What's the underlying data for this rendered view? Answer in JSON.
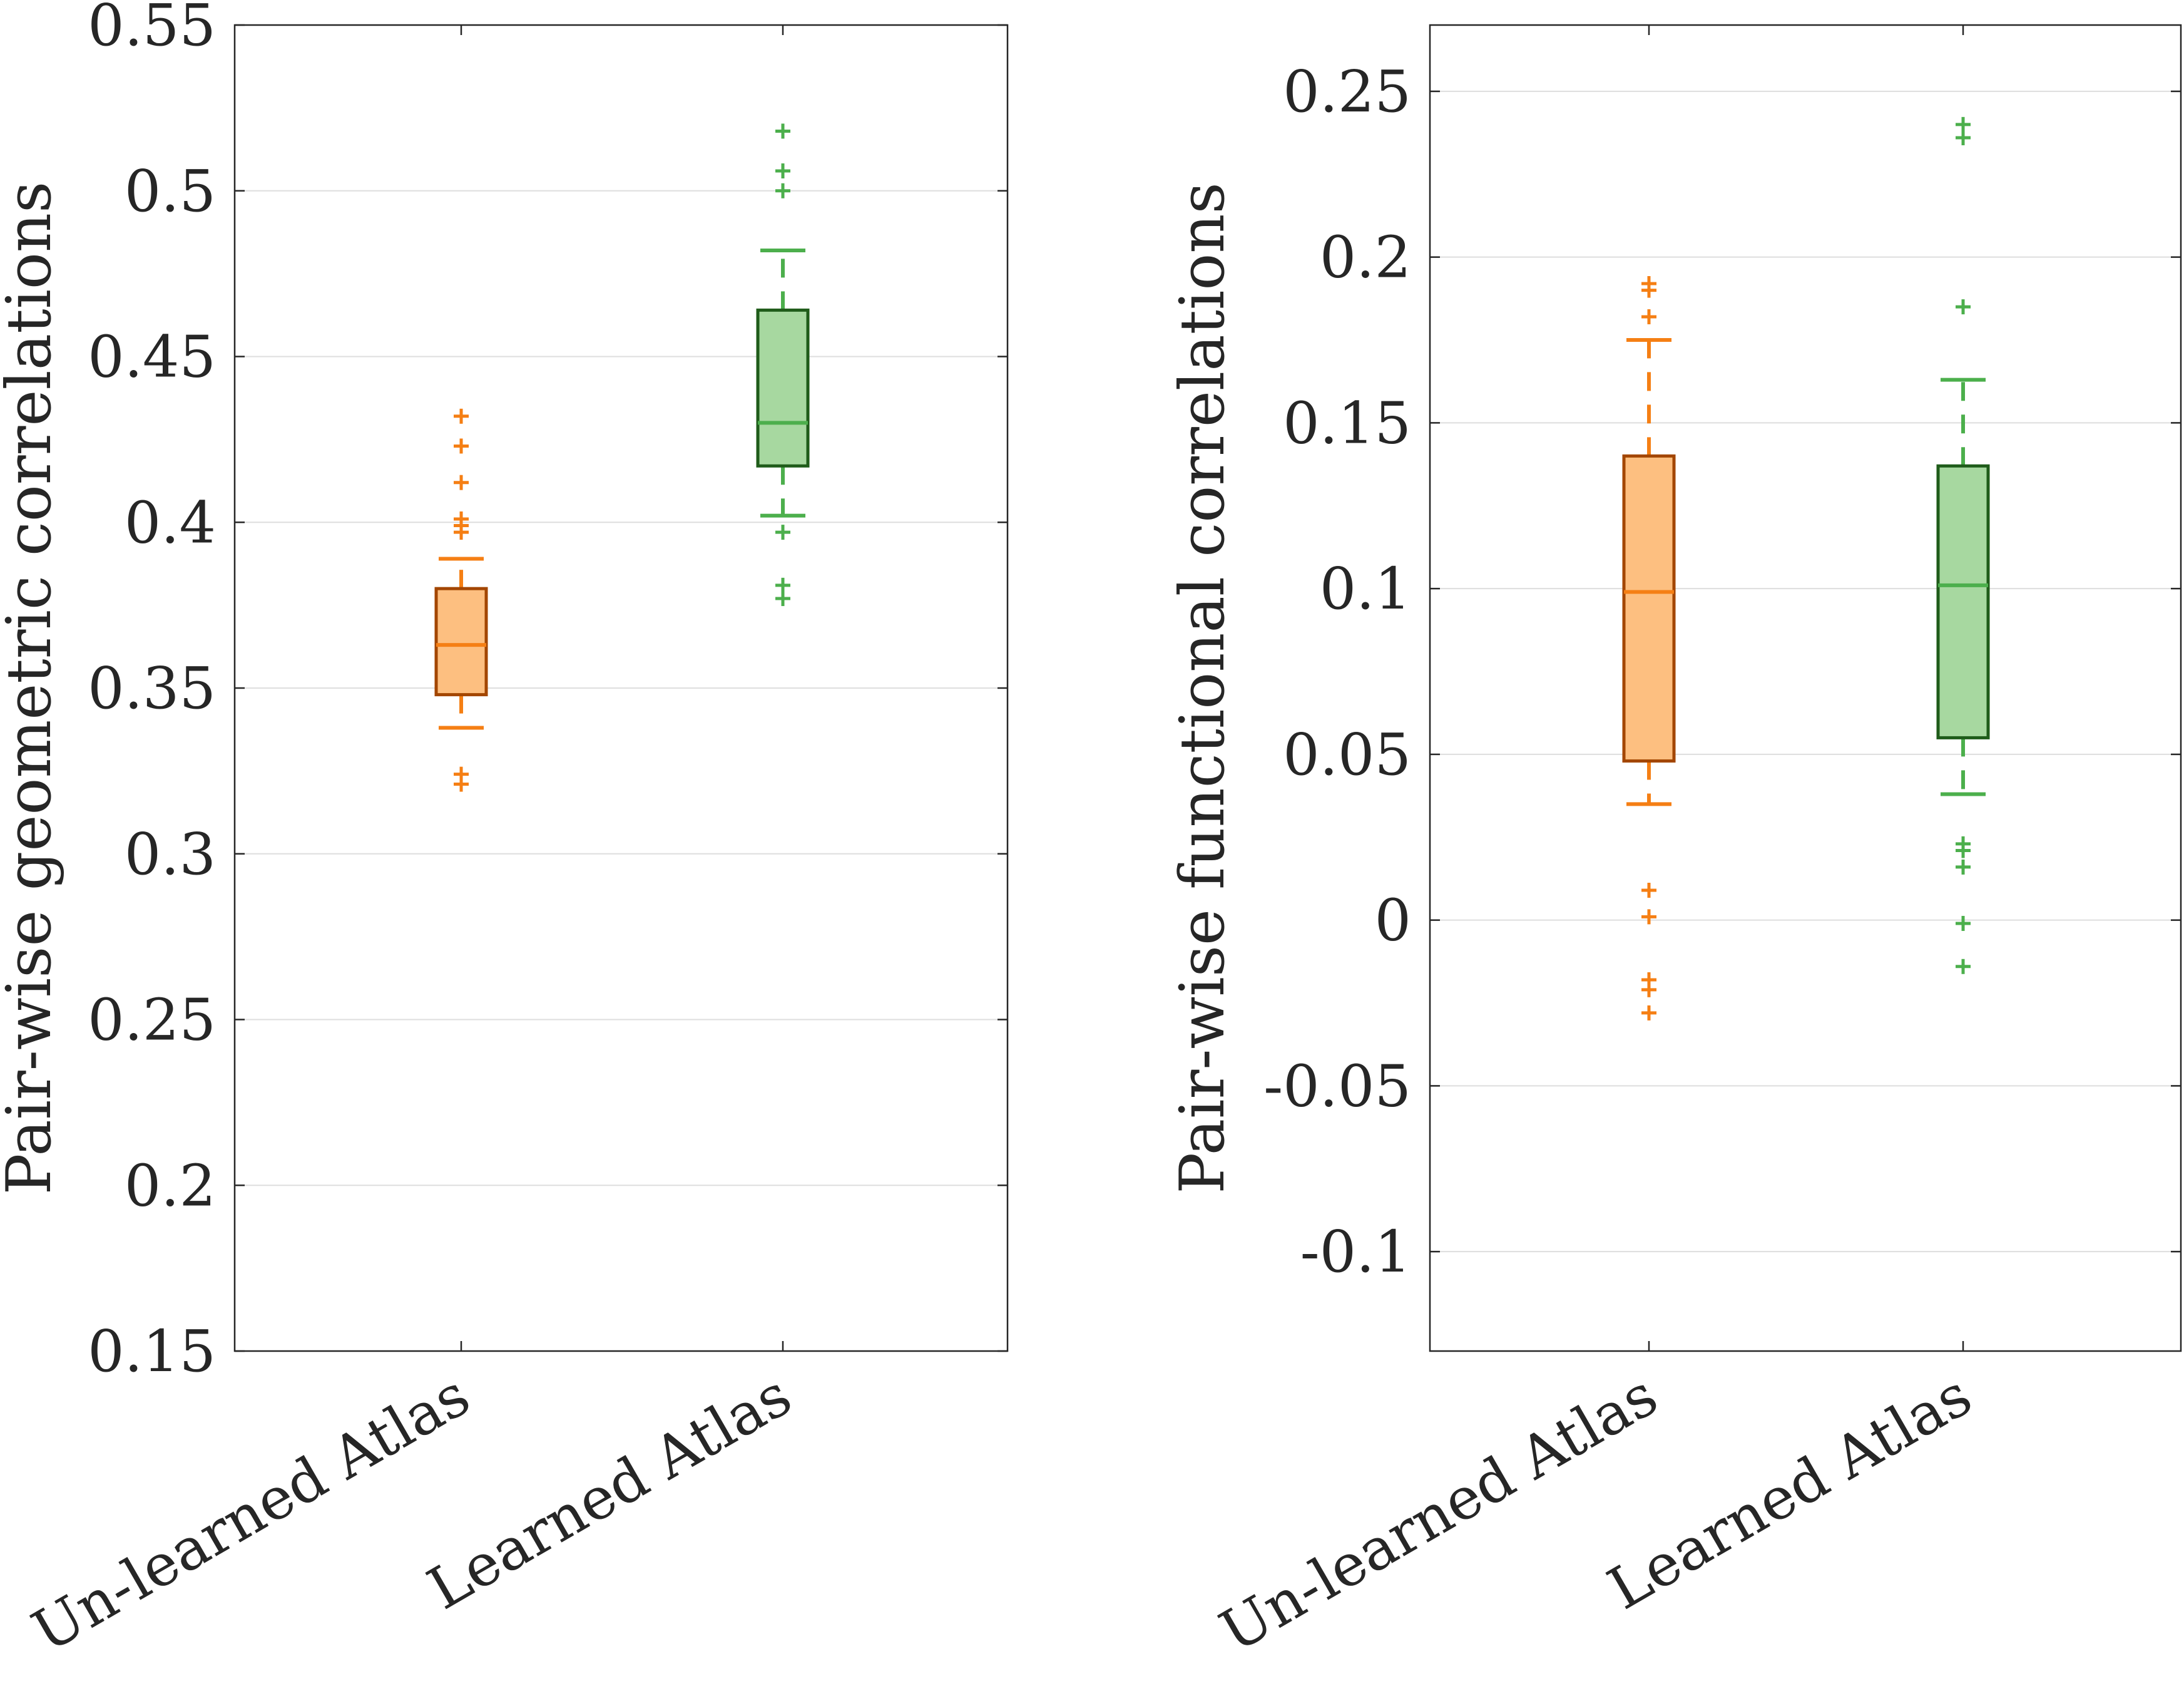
{
  "chart_data": [
    {
      "type": "box",
      "ylabel": "Pair-wise geometric correlations",
      "ylim": [
        0.15,
        0.55
      ],
      "yticks": [
        0.15,
        0.2,
        0.25,
        0.3,
        0.35,
        0.4,
        0.45,
        0.5,
        0.55
      ],
      "ytick_labels": [
        "0.15",
        "0.2",
        "0.25",
        "0.3",
        "0.35",
        "0.4",
        "0.45",
        "0.5",
        "0.55"
      ],
      "grid": "y",
      "categories": [
        "Un-learned Atlas",
        "Learned Atlas"
      ],
      "boxes": [
        {
          "category": "Un-learned Atlas",
          "fill": "#fdbf80",
          "edge": "#a34600",
          "color": "#f57f14",
          "whisker_low": 0.338,
          "q1": 0.348,
          "median": 0.363,
          "q3": 0.38,
          "whisker_high": 0.389,
          "outliers": [
            0.321,
            0.324,
            0.397,
            0.399,
            0.401,
            0.412,
            0.423,
            0.432
          ]
        },
        {
          "category": "Learned Atlas",
          "fill": "#a7d8a0",
          "edge": "#1f5c1a",
          "color": "#4caf4c",
          "whisker_low": 0.402,
          "q1": 0.417,
          "median": 0.43,
          "q3": 0.464,
          "whisker_high": 0.482,
          "outliers": [
            0.377,
            0.381,
            0.397,
            0.5,
            0.506,
            0.518
          ]
        }
      ]
    },
    {
      "type": "box",
      "ylabel": "Pair-wise functional correlations",
      "ylim": [
        -0.13,
        0.27
      ],
      "yticks": [
        -0.1,
        -0.05,
        0,
        0.05,
        0.1,
        0.15,
        0.2,
        0.25
      ],
      "ytick_labels": [
        "-0.1",
        "-0.05",
        "0",
        "0.05",
        "0.1",
        "0.15",
        "0.2",
        "0.25"
      ],
      "grid": "y",
      "categories": [
        "Un-learned Atlas",
        "Learned Atlas"
      ],
      "boxes": [
        {
          "category": "Un-learned Atlas",
          "fill": "#fdbf80",
          "edge": "#a34600",
          "color": "#f57f14",
          "whisker_low": 0.035,
          "q1": 0.048,
          "median": 0.099,
          "q3": 0.14,
          "whisker_high": 0.175,
          "outliers": [
            -0.028,
            -0.021,
            -0.018,
            0.001,
            0.009,
            0.182,
            0.19,
            0.192
          ]
        },
        {
          "category": "Learned Atlas",
          "fill": "#a7d8a0",
          "edge": "#1f5c1a",
          "color": "#4caf4c",
          "whisker_low": 0.038,
          "q1": 0.055,
          "median": 0.101,
          "q3": 0.137,
          "whisker_high": 0.163,
          "outliers": [
            -0.014,
            -0.001,
            0.016,
            0.021,
            0.023,
            0.185,
            0.236,
            0.24
          ]
        }
      ]
    }
  ]
}
